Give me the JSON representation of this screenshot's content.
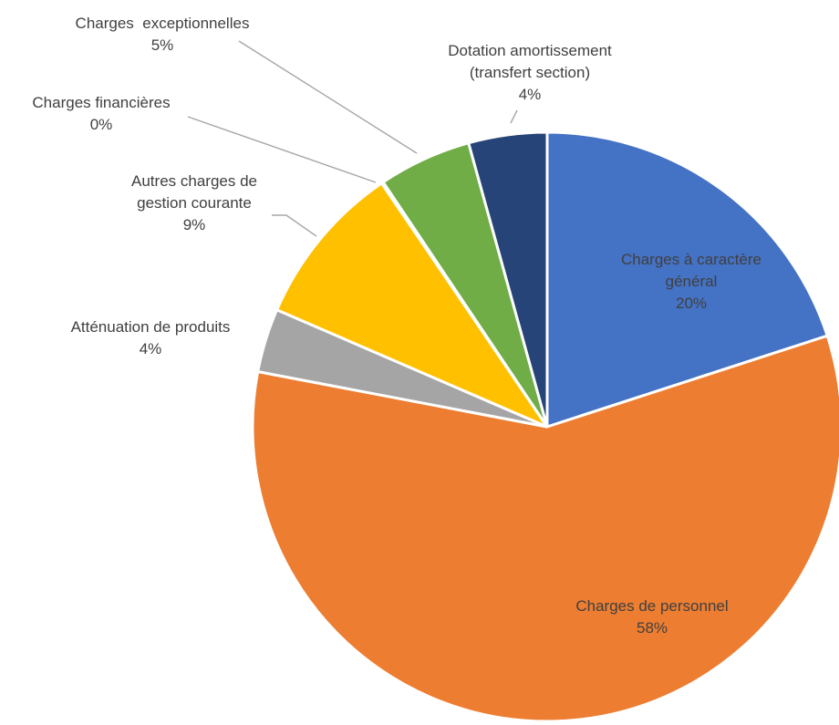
{
  "chart_data": {
    "type": "pie",
    "title": "",
    "legend": "none",
    "slices": [
      {
        "name": "Charges à caractère général",
        "label_lines": [
          "Charges à caractère",
          "général"
        ],
        "percent_label": "20%",
        "value": 0.2
      },
      {
        "name": "Charges de personnel",
        "label_lines": [
          "Charges de personnel"
        ],
        "percent_label": "58%",
        "value": 0.58
      },
      {
        "name": "Atténuation de produits",
        "label_lines": [
          "Atténuation de produits"
        ],
        "percent_label": "4%",
        "value": 0.035
      },
      {
        "name": "Autres charges de gestion courante",
        "label_lines": [
          "Autres charges de",
          "gestion courante"
        ],
        "percent_label": "9%",
        "value": 0.09
      },
      {
        "name": "Charges financières",
        "label_lines": [
          "Charges financières"
        ],
        "percent_label": "0%",
        "value": 0.001
      },
      {
        "name": "Charges exceptionnelles",
        "label_lines": [
          "Charges  exceptionnelles"
        ],
        "percent_label": "5%",
        "value": 0.051
      },
      {
        "name": "Dotation amortissement (transfert section)",
        "label_lines": [
          "Dotation amortissement",
          "(transfert section)"
        ],
        "percent_label": "4%",
        "value": 0.043
      }
    ],
    "colors": [
      "#4472C4",
      "#ED7D31",
      "#A5A5A5",
      "#FFC000",
      "#5B9BD5",
      "#70AD47",
      "#264478"
    ],
    "leader_line_color": "#A6A6A6",
    "text_color": "#404040"
  }
}
